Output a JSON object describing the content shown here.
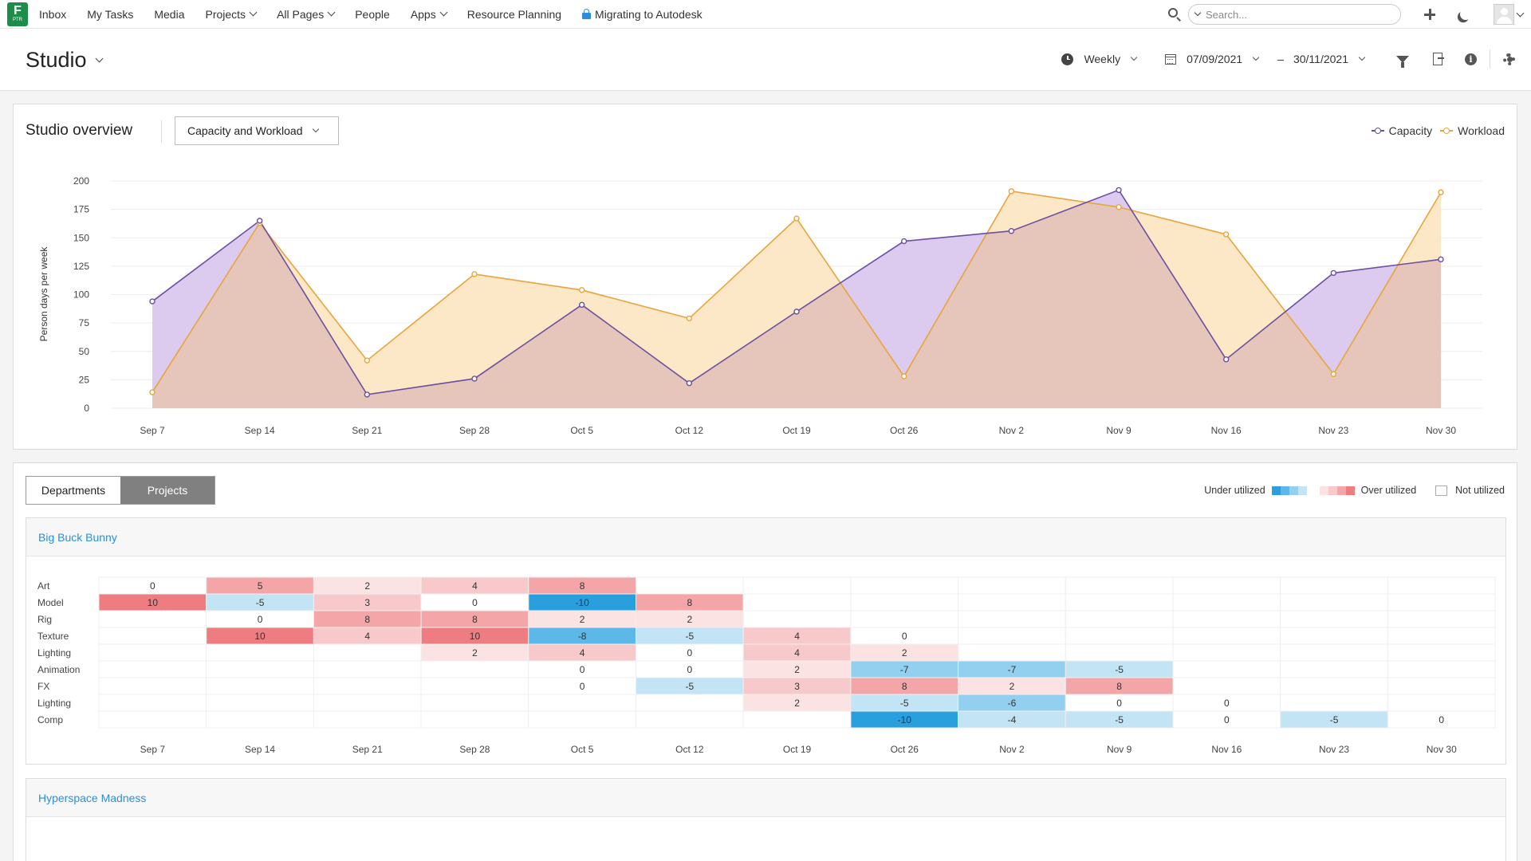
{
  "nav": {
    "logo_letter": "F",
    "logo_sub": "PTR",
    "items": [
      {
        "label": "Inbox",
        "dropdown": false
      },
      {
        "label": "My Tasks",
        "dropdown": false
      },
      {
        "label": "Media",
        "dropdown": false
      },
      {
        "label": "Projects",
        "dropdown": true
      },
      {
        "label": "All Pages",
        "dropdown": true
      },
      {
        "label": "People",
        "dropdown": false
      },
      {
        "label": "Apps",
        "dropdown": true
      },
      {
        "label": "Resource Planning",
        "dropdown": false
      }
    ],
    "migrating_label": "Migrating to Autodesk",
    "search_placeholder": "Search..."
  },
  "header": {
    "title": "Studio",
    "period": "Weekly",
    "date_from": "07/09/2021",
    "date_separator": "–",
    "date_to": "30/11/2021"
  },
  "overview": {
    "title": "Studio overview",
    "view_select": "Capacity and Workload",
    "legend": [
      {
        "name": "Capacity",
        "color": "#6b4fa0"
      },
      {
        "name": "Workload",
        "color": "#e7a53d"
      }
    ]
  },
  "chart_data": {
    "type": "area",
    "x": [
      "Sep 7",
      "Sep 14",
      "Sep 21",
      "Sep 28",
      "Oct 5",
      "Oct 12",
      "Oct 19",
      "Oct 26",
      "Nov 2",
      "Nov 9",
      "Nov 16",
      "Nov 23",
      "Nov 30"
    ],
    "series": [
      {
        "name": "Capacity",
        "color": "#6b4fa0",
        "fill": "#dccbee",
        "values": [
          94,
          165,
          12,
          26,
          91,
          22,
          85,
          147,
          156,
          192,
          43,
          119,
          131
        ]
      },
      {
        "name": "Workload",
        "color": "#e7a53d",
        "fill": "#fce7c6",
        "values": [
          14,
          163,
          42,
          118,
          104,
          79,
          167,
          28,
          191,
          177,
          153,
          30,
          190
        ]
      }
    ],
    "overlap_fill": "#e6c5bb",
    "title": "",
    "xlabel": "",
    "ylabel": "Person days per week",
    "ylim": [
      0,
      200
    ],
    "yticks": [
      0,
      25,
      50,
      75,
      100,
      125,
      150,
      175,
      200
    ],
    "grid": true,
    "legend": "top-right"
  },
  "utilization": {
    "tabs": [
      {
        "label": "Departments",
        "active": false
      },
      {
        "label": "Projects",
        "active": true
      }
    ],
    "under_label": "Under utilized",
    "over_label": "Over utilized",
    "not_label": "Not utilized",
    "under_colors": [
      "#2a9fde",
      "#5db7e8",
      "#93d0f0",
      "#c3e4f5"
    ],
    "over_colors": [
      "#fbe3e3",
      "#f8c9ca",
      "#f3a5a8",
      "#ee7d82"
    ],
    "weeks": [
      "Sep 7",
      "Sep 14",
      "Sep 21",
      "Sep 28",
      "Oct 5",
      "Oct 12",
      "Oct 19",
      "Oct 26",
      "Nov 2",
      "Nov 9",
      "Nov 16",
      "Nov 23",
      "Nov 30"
    ],
    "projects": [
      {
        "name": "Big Buck Bunny",
        "rows": [
          {
            "dept": "Art",
            "values": [
              0,
              5,
              2,
              4,
              8,
              null,
              null,
              null,
              null,
              null,
              null,
              null,
              null
            ]
          },
          {
            "dept": "Model",
            "values": [
              10,
              -5,
              3,
              0,
              -10,
              8,
              null,
              null,
              null,
              null,
              null,
              null,
              null
            ]
          },
          {
            "dept": "Rig",
            "values": [
              null,
              0,
              8,
              8,
              2,
              2,
              null,
              null,
              null,
              null,
              null,
              null,
              null
            ]
          },
          {
            "dept": "Texture",
            "values": [
              null,
              10,
              4,
              10,
              -8,
              -5,
              4,
              0,
              null,
              null,
              null,
              null,
              null
            ]
          },
          {
            "dept": "Lighting",
            "values": [
              null,
              null,
              null,
              2,
              4,
              0,
              4,
              2,
              null,
              null,
              null,
              null,
              null
            ]
          },
          {
            "dept": "Animation",
            "values": [
              null,
              null,
              null,
              null,
              0,
              0,
              2,
              -7,
              -7,
              -5,
              null,
              null,
              null
            ]
          },
          {
            "dept": "FX",
            "values": [
              null,
              null,
              null,
              null,
              0,
              -5,
              3,
              8,
              2,
              8,
              null,
              null,
              null
            ]
          },
          {
            "dept": "Lighting",
            "values": [
              null,
              null,
              null,
              null,
              null,
              null,
              2,
              -5,
              -6,
              0,
              0,
              null,
              null
            ]
          },
          {
            "dept": "Comp",
            "values": [
              null,
              null,
              null,
              null,
              null,
              null,
              null,
              -10,
              -4,
              -5,
              0,
              -5,
              0
            ]
          }
        ]
      },
      {
        "name": "Hyperspace Madness",
        "rows": []
      }
    ]
  }
}
